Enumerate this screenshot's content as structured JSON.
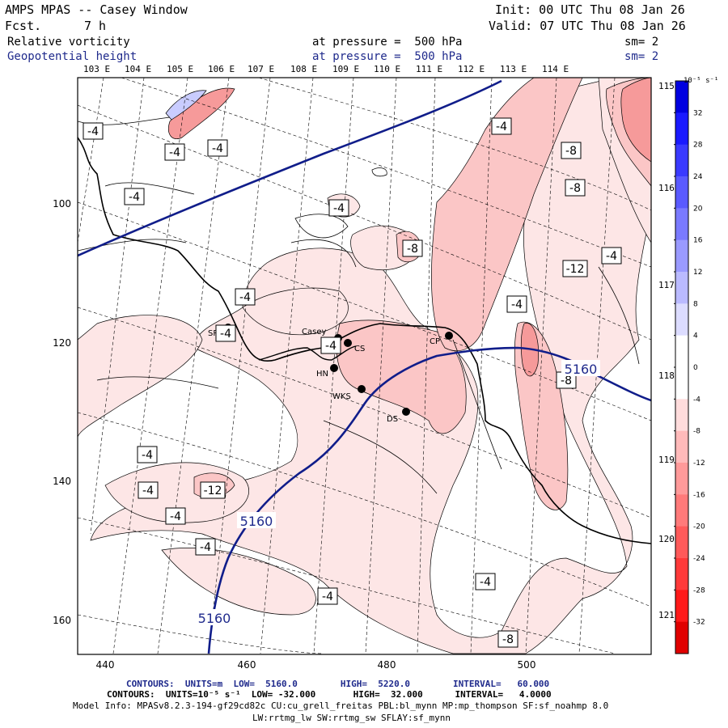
{
  "header": {
    "title": "AMPS MPAS -- Casey Window",
    "fcst_label": "Fcst.",
    "fcst_value": "7 h",
    "init": "Init: 00 UTC Thu 08 Jan 26",
    "valid": "Valid: 07 UTC Thu 08 Jan 26",
    "field1_name": "Relative vorticity",
    "field1_level": "at pressure =  500 hPa",
    "field1_sm": "sm= 2",
    "field2_name": "Geopotential height",
    "field2_level": "at pressure =  500 hPa",
    "field2_sm": "sm= 2"
  },
  "map": {
    "top_lon_labels": [
      "103 E",
      "104 E",
      "105 E",
      "106 E",
      "107 E",
      "108 E",
      "109 E",
      "110 E",
      "111 E",
      "112 E",
      "113 E",
      "114 E"
    ],
    "right_lon_labels": [
      "115 E",
      "116 E",
      "117 E",
      "118 E",
      "119 E",
      "120 E",
      "121 E"
    ],
    "x_axis_ticks": [
      "440",
      "460",
      "480",
      "500"
    ],
    "y_axis_ticks": [
      "100",
      "120",
      "140",
      "160"
    ],
    "stations": [
      {
        "name": "SP-D"
      },
      {
        "name": "Casey"
      },
      {
        "name": "CS"
      },
      {
        "name": "HN"
      },
      {
        "name": "WKS"
      },
      {
        "name": "DS"
      },
      {
        "name": "CP"
      }
    ],
    "vorticity_labels": [
      "-4",
      "-4",
      "-4",
      "-4",
      "-4",
      "-4",
      "-4",
      "-4",
      "-4",
      "-4",
      "-4",
      "-4",
      "-4",
      "-4",
      "-4",
      "-4",
      "-4",
      "-8",
      "-8",
      "-8",
      "-8",
      "-8",
      "-12",
      "-12"
    ],
    "height_labels": [
      "5160",
      "5160",
      "5160"
    ]
  },
  "colorbar": {
    "units": "10⁻⁵ s⁻¹",
    "ticks": [
      "32",
      "28",
      "24",
      "20",
      "16",
      "12",
      "8",
      "4",
      "0",
      "-4",
      "-8",
      "-12",
      "-16",
      "-20",
      "-24",
      "-28",
      "-32"
    ],
    "colors": [
      "#0000e0",
      "#1a1aff",
      "#3a3aff",
      "#5a5aff",
      "#7a7aff",
      "#9a9aff",
      "#babaff",
      "#dcdcff",
      "#ffffff",
      "#ffffff",
      "#ffdcdc",
      "#ffbaba",
      "#ff9a9a",
      "#ff7a7a",
      "#ff5a5a",
      "#ff3a3a",
      "#ff1a1a",
      "#e00000"
    ]
  },
  "footer": {
    "line1": "CONTOURS:  UNITS=m  LOW=  5160.0        HIGH=  5220.0        INTERVAL=   60.000",
    "line2": "CONTOURS:  UNITS=10⁻⁵ s⁻¹  LOW= -32.000       HIGH=  32.000      INTERVAL=   4.0000",
    "line3": "Model Info: MPASv8.2.3-194-gf29cd82c CU:cu_grell_freitas PBL:bl_mynn MP:mp_thompson SF:sf_noahmp 8.0",
    "line4": "LW:rrtmg_lw SW:rrtmg_sw SFLAY:sf_mynn"
  }
}
